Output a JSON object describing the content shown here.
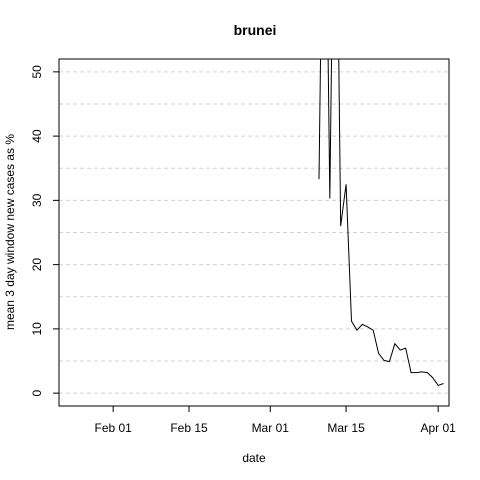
{
  "chart_data": {
    "type": "line",
    "title": "brunei",
    "xlabel": "date",
    "ylabel": "mean  3  day window new cases as %",
    "x_ticks": [
      {
        "date": "2020-02-01",
        "label": "Feb 01"
      },
      {
        "date": "2020-02-15",
        "label": "Feb 15"
      },
      {
        "date": "2020-03-01",
        "label": "Mar 01"
      },
      {
        "date": "2020-03-15",
        "label": "Mar 15"
      },
      {
        "date": "2020-04-01",
        "label": "Apr 01"
      }
    ],
    "y_ticks": [
      0,
      10,
      20,
      30,
      40,
      50
    ],
    "xlim": [
      "2020-01-22",
      "2020-04-03"
    ],
    "ylim": [
      -2,
      52
    ],
    "grid": "horizontal dashed",
    "series": [
      {
        "x": [
          "2020-03-10",
          "2020-03-11",
          "2020-03-12",
          "2020-03-13",
          "2020-03-14",
          "2020-03-15",
          "2020-03-16",
          "2020-03-17",
          "2020-03-18",
          "2020-03-19",
          "2020-03-20",
          "2020-03-21",
          "2020-03-22",
          "2020-03-23",
          "2020-03-24",
          "2020-03-25",
          "2020-03-26",
          "2020-03-27",
          "2020-03-28",
          "2020-03-29",
          "2020-03-30",
          "2020-03-31",
          "2020-04-01",
          "2020-04-02"
        ],
        "y": [
          33.3,
          100,
          30.3,
          100,
          26.0,
          32.5,
          11.2,
          9.8,
          10.7,
          10.3,
          9.8,
          6.2,
          5.1,
          4.9,
          7.7,
          6.7,
          7.0,
          3.2,
          3.2,
          3.3,
          3.2,
          2.4,
          1.2,
          1.5
        ]
      }
    ]
  }
}
